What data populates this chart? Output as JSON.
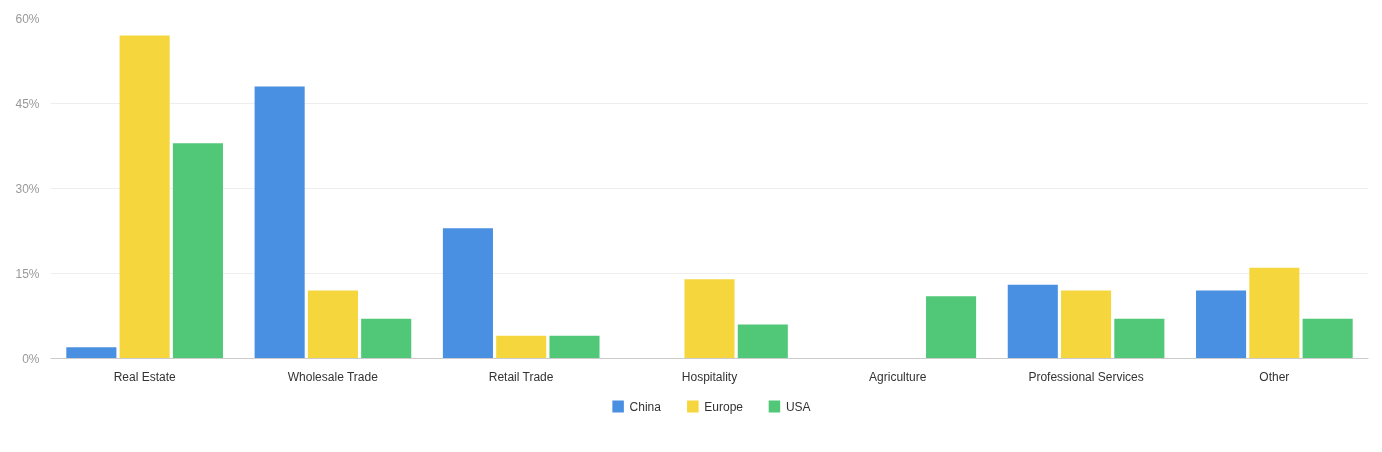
{
  "chart_data": {
    "type": "bar",
    "categories": [
      "Real Estate",
      "Wholesale Trade",
      "Retail Trade",
      "Hospitality",
      "Agriculture",
      "Professional Services",
      "Other"
    ],
    "series": [
      {
        "name": "China",
        "color": "#4a90e2",
        "values": [
          2,
          48,
          23,
          0,
          0,
          13,
          12
        ]
      },
      {
        "name": "Europe",
        "color": "#f5d63d",
        "values": [
          57,
          12,
          4,
          14,
          0,
          12,
          16
        ]
      },
      {
        "name": "USA",
        "color": "#50c878",
        "values": [
          38,
          7,
          4,
          6,
          11,
          7,
          7
        ]
      }
    ],
    "ylim": [
      0,
      60
    ],
    "yticks": [
      {
        "value": 0,
        "label": "0%"
      },
      {
        "value": 15,
        "label": "15%"
      },
      {
        "value": 30,
        "label": "30%"
      },
      {
        "value": 45,
        "label": "45%"
      },
      {
        "value": 60,
        "label": "60%"
      }
    ],
    "grid": "y",
    "legend": "bottom"
  }
}
